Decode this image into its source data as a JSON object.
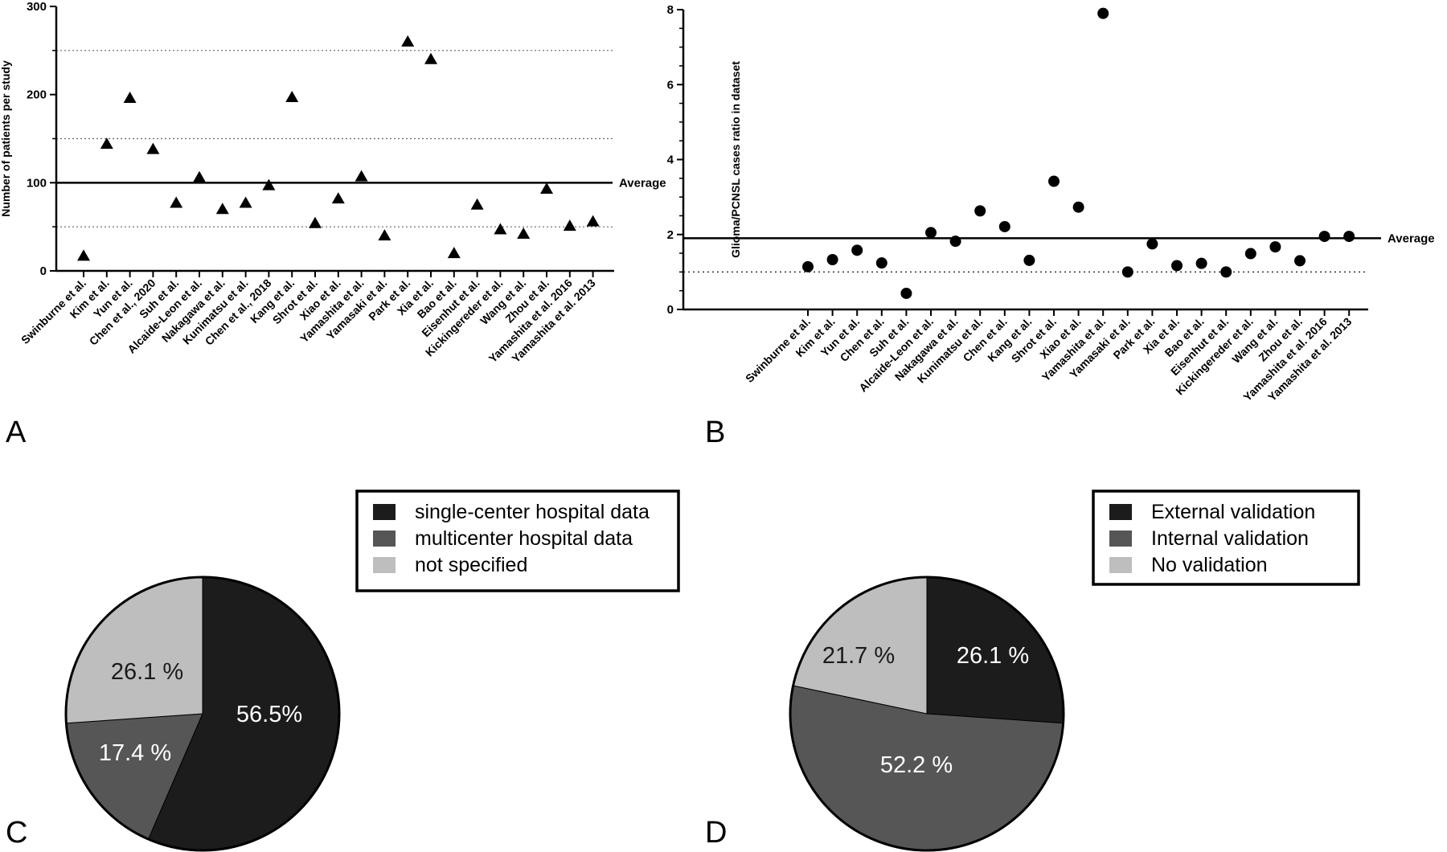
{
  "chart_data": [
    {
      "panel": "A",
      "type": "scatter",
      "marker": "triangle",
      "ylabel": "Number of patients per study",
      "ylim": [
        0,
        300
      ],
      "yticks": [
        0,
        100,
        200,
        300
      ],
      "gridlines_dotted": [
        50,
        150,
        250
      ],
      "average": 100,
      "average_label": "Average",
      "categories": [
        "Swinburne et al.",
        "Kim et al.",
        "Yun et al.",
        "Chen et al., 2020",
        "Suh et al.",
        "Alcaide-Leon et al.",
        "Nakagawa et al.",
        "Kunimatsu et al.",
        "Chen et al., 2018",
        "Kang et al.",
        "Shrot et al.",
        "Xiao et al.",
        "Yamashita et al.",
        "Yamasaki et al.",
        "Park et al.",
        "Xia et al.",
        "Bao et al.",
        "Eisenhut et al.",
        "Kickingereder et al.",
        "Wang et al.",
        "Zhou et al.",
        "Yamashita et al. 2016",
        "Yamashita et al. 2013"
      ],
      "values": [
        17,
        144,
        196,
        138,
        77,
        106,
        70,
        77,
        97,
        197,
        54,
        82,
        107,
        40,
        260,
        240,
        20,
        75,
        47,
        42,
        93,
        51,
        56
      ]
    },
    {
      "panel": "B",
      "type": "scatter",
      "marker": "circle",
      "ylabel": "Glioma/PCNSL cases ratio in dataset",
      "ylim": [
        0,
        8
      ],
      "yticks": [
        0,
        2,
        4,
        6,
        8
      ],
      "gridlines_dotted": [
        1
      ],
      "average": 1.9,
      "average_label": "Average",
      "categories": [
        "Swinburne et al.",
        "Kim et al.",
        "Yun et al.",
        "Chen et al.",
        "Suh et al.",
        "Alcaide-Leon et al.",
        "Nakagawa et al.",
        "Kunimatsu et al.",
        "Chen et al.",
        "Kang et al.",
        "Shrot et al.",
        "Xiao et al.",
        "Yamashita et al.",
        "Yamasaki et al.",
        "Park et al.",
        "Xia et al.",
        "Bao et al.",
        "Eisenhut et al.",
        "Kickingereder et al.",
        "Wang et al.",
        "Zhou et al.",
        "Yamashita et al. 2016",
        "Yamashita et al. 2013"
      ],
      "values": [
        1.14,
        1.33,
        1.58,
        1.24,
        0.43,
        2.05,
        1.82,
        2.63,
        2.21,
        1.31,
        3.42,
        2.73,
        7.9,
        1.0,
        1.75,
        1.17,
        1.23,
        1.0,
        1.49,
        1.67,
        1.3,
        1.95,
        1.95
      ]
    },
    {
      "panel": "C",
      "type": "pie",
      "slices": [
        {
          "label": "single-center hospital data",
          "value": 56.5,
          "text": "56.5%",
          "color": "#1c1c1c",
          "text_color": "#ffffff"
        },
        {
          "label": "multicenter hospital data",
          "value": 17.4,
          "text": "17.4 %",
          "color": "#565656",
          "text_color": "#ffffff"
        },
        {
          "label": "not specified",
          "value": 26.1,
          "text": "26.1 %",
          "color": "#bebebe",
          "text_color": "#1a1a1a"
        }
      ],
      "legend_position": "top-right"
    },
    {
      "panel": "D",
      "type": "pie",
      "slices": [
        {
          "label": "External validation",
          "value": 26.1,
          "text": "26.1 %",
          "color": "#1c1c1c",
          "text_color": "#ffffff"
        },
        {
          "label": "Internal validation",
          "value": 52.2,
          "text": "52.2 %",
          "color": "#565656",
          "text_color": "#ffffff"
        },
        {
          "label": "No validation",
          "value": 21.7,
          "text": "21.7 %",
          "color": "#bebebe",
          "text_color": "#1a1a1a"
        }
      ],
      "legend_position": "top-right"
    }
  ]
}
